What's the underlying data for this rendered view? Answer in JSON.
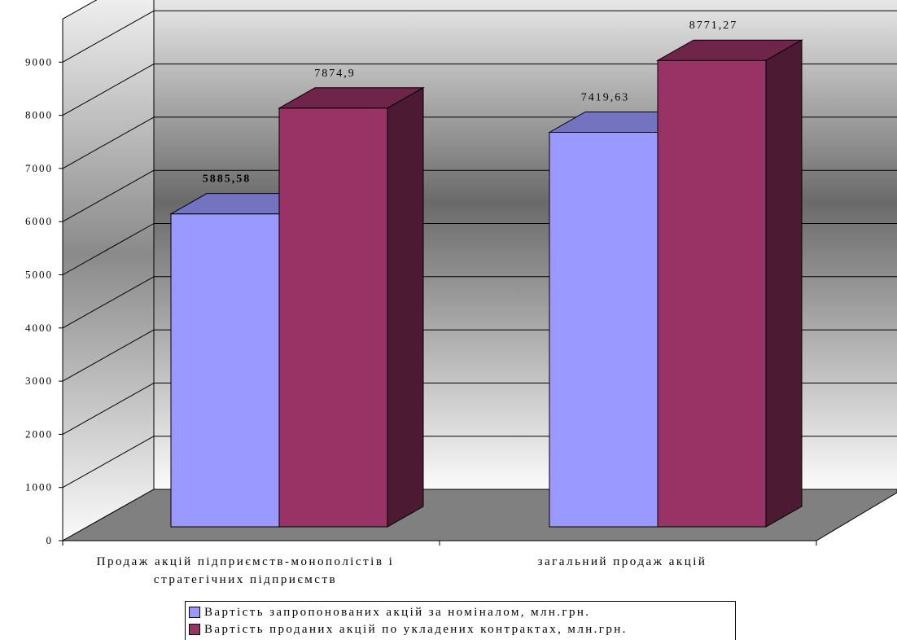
{
  "chart_data": {
    "type": "bar",
    "categories": [
      "Продаж акцій підприємств-монополістів і стратегічних підприємств",
      "загальний продаж акцій"
    ],
    "category_lines": [
      [
        "Продаж акцій підприємств-монополістів і",
        "стратегічних підприємств"
      ],
      [
        "загальний продаж акцій"
      ]
    ],
    "series": [
      {
        "name": "Вартість запропонованих акцій за номіналом, млн.грн.",
        "values": [
          5885.58,
          7419.63
        ],
        "labels": [
          "5885,58",
          "7419,63"
        ],
        "color": "#9999ff"
      },
      {
        "name": "Вартість проданих акцій по укладених контрактах, млн.грн.",
        "values": [
          7874.9,
          8771.27
        ],
        "labels": [
          "7874,9",
          "8771,27"
        ],
        "color": "#993366"
      }
    ],
    "yticks": [
      0,
      1000,
      2000,
      3000,
      4000,
      5000,
      6000,
      7000,
      8000,
      9000
    ],
    "ylim": [
      0,
      9000
    ],
    "grid": true,
    "legend_position": "bottom"
  }
}
